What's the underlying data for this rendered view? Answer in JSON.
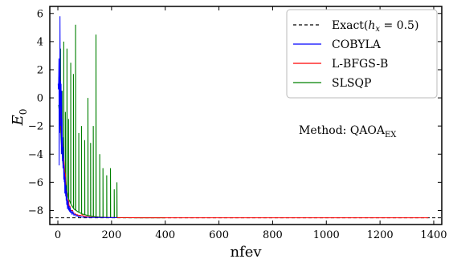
{
  "chart_data": {
    "type": "line",
    "xlabel": "nfev",
    "ylabel": "E",
    "ylabel_sub": "0",
    "xlim": [
      -30,
      1430
    ],
    "ylim": [
      -9,
      6.5
    ],
    "xticks": [
      0,
      200,
      400,
      600,
      800,
      1000,
      1200,
      1400
    ],
    "yticks": [
      -8,
      -6,
      -4,
      -2,
      0,
      2,
      4,
      6
    ],
    "grid": false,
    "legend_position": "top-right",
    "annotation": {
      "text": "Method: QAOA",
      "sub": "EX"
    },
    "colors": {
      "exact": "#000000",
      "cobyla": "#0000ff",
      "lbfgsb": "#ff0000",
      "slsqp": "#008000"
    },
    "series": [
      {
        "name": "Exact(h_x = 0.5)",
        "legend_parts": {
          "prefix": "Exact(",
          "var": "h",
          "sub": "x",
          "suffix": " = 0.5)"
        },
        "style": "dashed",
        "color_key": "exact",
        "y_const": -8.52
      },
      {
        "name": "COBYLA",
        "color_key": "cobyla",
        "x": [
          1,
          2,
          3,
          4,
          5,
          6,
          7,
          8,
          9,
          10,
          11,
          12,
          13,
          14,
          15,
          16,
          17,
          18,
          19,
          20,
          21,
          22,
          23,
          24,
          25,
          26,
          27,
          28,
          29,
          30,
          31,
          32,
          33,
          34,
          35,
          36,
          38,
          40,
          42,
          44,
          46,
          48,
          50,
          53,
          56,
          60,
          64,
          68,
          72,
          76,
          80,
          85,
          90,
          95,
          100,
          110,
          120,
          130,
          140,
          150,
          160,
          170,
          180,
          190,
          200,
          210,
          220
        ],
        "y": [
          1.0,
          0.6,
          1.2,
          2.8,
          -4.8,
          1.5,
          -2.5,
          5.8,
          -0.6,
          1.2,
          -2.0,
          1.0,
          -4.0,
          0.5,
          -3.6,
          -1.5,
          -4.5,
          -2.8,
          -5.0,
          -3.5,
          -4.2,
          -5.8,
          -4.8,
          -6.0,
          -5.3,
          -6.8,
          -5.6,
          -6.3,
          -7.0,
          -6.2,
          -7.3,
          -6.6,
          -7.6,
          -7.0,
          -7.5,
          -7.9,
          -7.3,
          -8.0,
          -7.7,
          -8.1,
          -7.8,
          -8.2,
          -8.0,
          -8.3,
          -8.1,
          -8.35,
          -8.25,
          -8.4,
          -8.35,
          -8.45,
          -8.4,
          -8.45,
          -8.47,
          -8.47,
          -8.48,
          -8.49,
          -8.5,
          -8.5,
          -8.5,
          -8.5,
          -8.5,
          -8.5,
          -8.51,
          -8.51,
          -8.51,
          -8.51,
          -8.51
        ]
      },
      {
        "name": "L-BFGS-B",
        "color_key": "lbfgsb",
        "x": [
          5,
          8,
          10,
          12,
          14,
          18,
          20,
          22,
          26,
          28,
          30,
          32,
          35,
          40,
          42,
          45,
          48,
          55,
          58,
          62,
          68,
          72,
          78,
          85,
          90,
          95,
          100,
          110,
          115,
          125,
          130,
          140,
          150,
          160,
          180,
          200,
          220,
          260,
          300,
          400,
          600,
          800,
          1000,
          1200,
          1380
        ],
        "y": [
          1.1,
          1.0,
          -1.5,
          -2.3,
          -3.0,
          -3.1,
          -4.2,
          -4.3,
          -5.3,
          -5.4,
          -6.5,
          -6.6,
          -7.2,
          -7.3,
          -7.7,
          -7.7,
          -8.0,
          -8.0,
          -8.2,
          -8.2,
          -8.3,
          -8.3,
          -8.35,
          -8.35,
          -8.3,
          -8.4,
          -8.4,
          -8.45,
          -8.45,
          -8.48,
          -8.48,
          -8.49,
          -8.5,
          -8.5,
          -8.5,
          -8.51,
          -8.51,
          -8.51,
          -8.52,
          -8.52,
          -8.52,
          -8.52,
          -8.52,
          -8.52,
          -8.52
        ]
      },
      {
        "name": "SLSQP",
        "color_key": "slsqp",
        "baseline": [
          [
            3,
            -0.5
          ],
          [
            8,
            -1.5
          ],
          [
            12,
            -3.0
          ],
          [
            18,
            -4.5
          ],
          [
            25,
            -5.5
          ],
          [
            32,
            -6.5
          ],
          [
            40,
            -7.2
          ],
          [
            50,
            -7.6
          ],
          [
            60,
            -7.9
          ],
          [
            75,
            -8.1
          ],
          [
            90,
            -8.25
          ],
          [
            110,
            -8.35
          ],
          [
            130,
            -8.42
          ],
          [
            150,
            -8.46
          ],
          [
            180,
            -8.49
          ],
          [
            220,
            -8.51
          ],
          [
            300,
            -8.52
          ],
          [
            400,
            -8.52
          ]
        ],
        "spikes": [
          [
            10,
            3.5
          ],
          [
            16,
            0.5
          ],
          [
            22,
            4.0
          ],
          [
            28,
            -1.0
          ],
          [
            34,
            3.5
          ],
          [
            40,
            -1.5
          ],
          [
            48,
            2.5
          ],
          [
            58,
            1.7
          ],
          [
            66,
            5.2
          ],
          [
            78,
            -2.5
          ],
          [
            88,
            -2.0
          ],
          [
            100,
            -3.0
          ],
          [
            112,
            0.0
          ],
          [
            122,
            -3.2
          ],
          [
            132,
            -2.0
          ],
          [
            142,
            4.5
          ],
          [
            156,
            -4.0
          ],
          [
            168,
            -5.0
          ],
          [
            182,
            -5.5
          ],
          [
            196,
            -5.0
          ],
          [
            210,
            -6.5
          ],
          [
            220,
            -6.0
          ]
        ]
      }
    ]
  }
}
